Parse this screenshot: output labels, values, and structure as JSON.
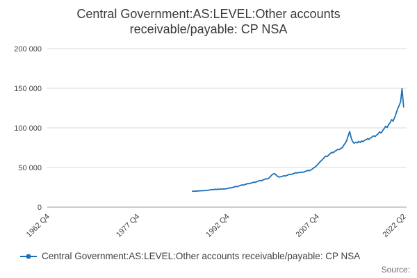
{
  "title": {
    "line1": "Central Government:AS:LEVEL:Other accounts",
    "line2": "receivable/payable: CP NSA"
  },
  "legend": {
    "label": "Central Government:AS:LEVEL:Other accounts receivable/payable: CP NSA"
  },
  "source_label": "Source:",
  "colors": {
    "series": "#1d70b8",
    "grid": "#d9d9d9",
    "axis": "#9b9b9b",
    "text": "#414042"
  },
  "chart_data": {
    "type": "line",
    "title": "Central Government:AS:LEVEL:Other accounts receivable/payable: CP NSA",
    "xlabel": "",
    "ylabel": "",
    "ylim": [
      0,
      200000
    ],
    "grid": true,
    "legend_position": "bottom-left",
    "x_unit": "year_quarter",
    "x_axis_range_t": [
      1962.75,
      2022.75
    ],
    "yticks": [
      {
        "value": 0,
        "label": "0"
      },
      {
        "value": 50000,
        "label": "50 000"
      },
      {
        "value": 100000,
        "label": "100 000"
      },
      {
        "value": 150000,
        "label": "150 000"
      },
      {
        "value": 200000,
        "label": "200 000"
      }
    ],
    "xticks": [
      {
        "t": 1962.75,
        "label": "1962 Q4"
      },
      {
        "t": 1977.75,
        "label": "1977 Q4"
      },
      {
        "t": 1992.75,
        "label": "1992 Q4"
      },
      {
        "t": 2007.75,
        "label": "2007 Q4"
      },
      {
        "t": 2022.25,
        "label": "2022 Q2"
      }
    ],
    "series": [
      {
        "name": "Central Government:AS:LEVEL:Other accounts receivable/payable: CP NSA",
        "start_label": "1987 Q1",
        "start_t": 1987.0,
        "period_years": 0.25,
        "values": [
          20000,
          20300,
          19800,
          20500,
          20200,
          20800,
          20400,
          21000,
          20600,
          21200,
          20900,
          21500,
          21800,
          22300,
          21900,
          22600,
          22200,
          22800,
          22400,
          23000,
          22600,
          23200,
          22800,
          23500,
          23800,
          24500,
          24100,
          25000,
          25400,
          26200,
          25800,
          26800,
          27300,
          28100,
          27700,
          28600,
          29000,
          29800,
          29400,
          30300,
          30800,
          31600,
          31200,
          32200,
          32800,
          33700,
          33200,
          34300,
          34900,
          35800,
          35400,
          36500,
          38500,
          40500,
          41800,
          42300,
          40200,
          38600,
          37900,
          38400,
          38900,
          39600,
          39200,
          40100,
          40700,
          41500,
          41100,
          42000,
          42600,
          43400,
          43000,
          43900,
          43500,
          44300,
          43900,
          44800,
          45400,
          46300,
          45900,
          46900,
          48000,
          49500,
          50800,
          52500,
          54500,
          56800,
          58500,
          60500,
          62500,
          64500,
          63800,
          65800,
          67500,
          69200,
          68600,
          70400,
          71500,
          73000,
          72400,
          74200,
          75000,
          78000,
          80500,
          84000,
          90000,
          95500,
          87500,
          82500,
          80500,
          82000,
          81000,
          83000,
          81500,
          83500,
          82500,
          84500,
          85000,
          86500,
          85500,
          87500,
          88500,
          90000,
          89000,
          91000,
          92500,
          95000,
          93500,
          96500,
          99000,
          102000,
          100500,
          104000,
          106500,
          110500,
          108500,
          113000,
          118000,
          124000,
          128000,
          133000,
          149500,
          126500
        ]
      }
    ]
  }
}
